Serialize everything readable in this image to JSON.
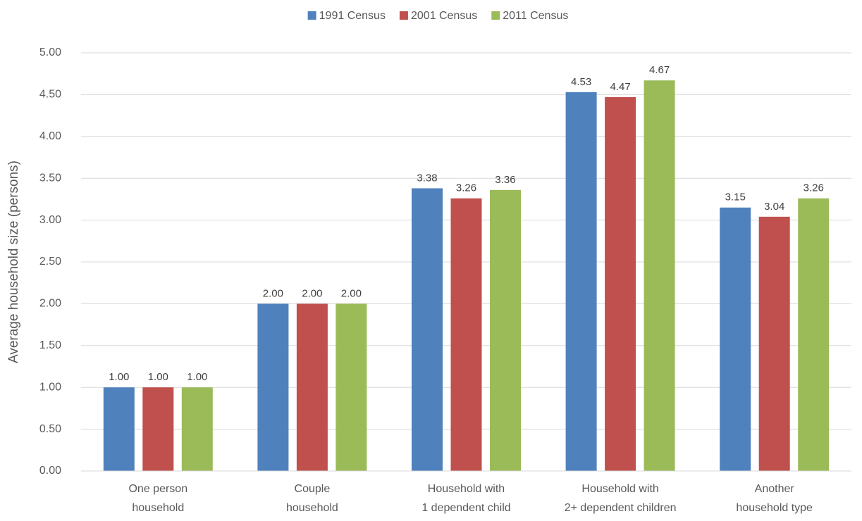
{
  "chart_data": {
    "type": "bar",
    "y_label": "Average household size (persons)",
    "categories": [
      [
        "One person",
        "household"
      ],
      [
        "Couple",
        "household"
      ],
      [
        "Household with",
        "1 dependent child"
      ],
      [
        "Household with",
        "2+ dependent children"
      ],
      [
        "Another",
        "household type"
      ]
    ],
    "series": [
      {
        "name": "1991 Census",
        "color": "#4f81bd",
        "values": [
          1.0,
          2.0,
          3.38,
          4.53,
          3.15
        ],
        "value_labels": [
          "1.00",
          "2.00",
          "3.38",
          "4.53",
          "3.15"
        ]
      },
      {
        "name": "2001 Census",
        "color": "#c0504d",
        "values": [
          1.0,
          2.0,
          3.26,
          4.47,
          3.04
        ],
        "value_labels": [
          "1.00",
          "2.00",
          "3.26",
          "4.47",
          "3.04"
        ]
      },
      {
        "name": "2011 Census",
        "color": "#9bbb59",
        "values": [
          1.0,
          2.0,
          3.36,
          4.67,
          3.26
        ],
        "value_labels": [
          "1.00",
          "2.00",
          "3.36",
          "4.67",
          "3.26"
        ]
      }
    ],
    "ylim": [
      0,
      5
    ],
    "yticks": [
      {
        "value": 0,
        "label": "0.00"
      },
      {
        "value": 0.5,
        "label": "0.50"
      },
      {
        "value": 1,
        "label": "1.00"
      },
      {
        "value": 1.5,
        "label": "1.50"
      },
      {
        "value": 2,
        "label": "2.00"
      },
      {
        "value": 2.5,
        "label": "2.50"
      },
      {
        "value": 3,
        "label": "3.00"
      },
      {
        "value": 3.5,
        "label": "3.50"
      },
      {
        "value": 4,
        "label": "4.00"
      },
      {
        "value": 4.5,
        "label": "4.50"
      },
      {
        "value": 5,
        "label": "5.00"
      }
    ],
    "grid": true,
    "legend": "top"
  }
}
